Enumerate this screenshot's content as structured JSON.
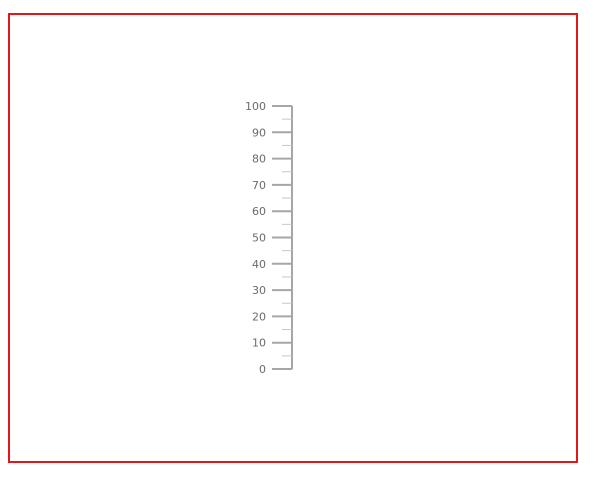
{
  "frame_border_color": "#e3161c",
  "axis_color": "#a6a6a6",
  "label_color": "#6b6b6b",
  "scale": {
    "type": "linear-gauge",
    "orientation": "vertical",
    "min": 0,
    "max": 100,
    "major_interval": 10,
    "minor_interval": 5,
    "labels": [
      "0",
      "10",
      "20",
      "30",
      "40",
      "50",
      "60",
      "70",
      "80",
      "90",
      "100"
    ]
  }
}
